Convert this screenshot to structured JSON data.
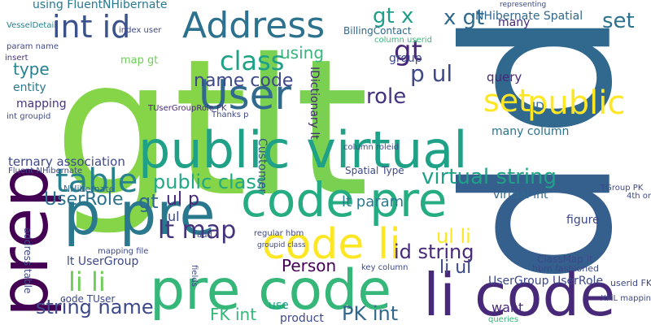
{
  "words": [
    "gt",
    "lt",
    "p",
    "p",
    "public virtual",
    "code pre",
    "p pre",
    "pre code",
    "li code",
    "prep",
    "code li",
    "Address",
    "User",
    "int id",
    "class",
    "set",
    "public",
    "gt x",
    "x gt",
    "table",
    "public class",
    "virtual string",
    "lt param",
    "UserRole",
    "gt",
    "ul p",
    "lt map",
    "li li",
    "string name",
    "FK int",
    "PK int",
    "Person",
    "id string",
    "ul li",
    "li ul",
    "name code",
    "p ul",
    "role",
    "type",
    "using",
    "gt",
    "map gt",
    "ternary association",
    "set",
    "IDictionary lt",
    "Customer",
    "NHibernate",
    "Fluent NHibernate",
    "entity",
    "mapping",
    "virtual int",
    "query",
    "UserGroup UserRole",
    "many column",
    "lt UserGroup",
    "want",
    "queries",
    "product",
    "use",
    "Spatial Type",
    "NHibernate Spatial",
    "using FluentNHibernate",
    "VesselDetail",
    "param name",
    "insert",
    "int groupid",
    "BillingContact",
    "many",
    "index user",
    "figure",
    "ClassMap lt",
    "mapping file",
    "address table",
    "key column",
    "column userid",
    "ID",
    "group",
    "column roleid",
    "userid FK",
    "TUserGroupRole FK",
    "Thanks p",
    "regular hbm",
    "add",
    "code TUser",
    "groupid class",
    "fields",
    "representing",
    "ul",
    "TGroup PK",
    "4th one",
    "XML mapping",
    "hbm fashioned"
  ]
}
